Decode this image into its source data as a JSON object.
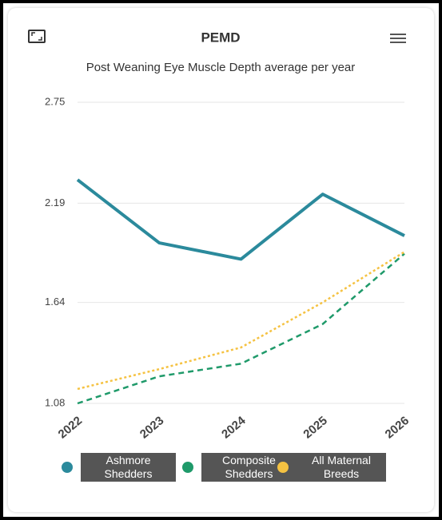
{
  "chart_data": {
    "type": "line",
    "title": "PEMD",
    "subtitle": "Post Weaning Eye Muscle Depth average per year",
    "categories": [
      "2022",
      "2023",
      "2024",
      "2025",
      "2026"
    ],
    "series": [
      {
        "name": "Ashmore Shedders",
        "color": "#2b8a9c",
        "dash": "solid",
        "values": [
          2.32,
          1.97,
          1.88,
          2.24,
          2.01
        ]
      },
      {
        "name": "Composite Shedders",
        "color": "#1f9a6a",
        "dash": "dashed",
        "values": [
          1.08,
          1.23,
          1.3,
          1.52,
          1.91
        ]
      },
      {
        "name": "All Maternal Breeds",
        "color": "#f5c242",
        "dash": "dotted",
        "values": [
          1.16,
          1.27,
          1.39,
          1.64,
          1.92
        ]
      }
    ],
    "ylim": [
      1.08,
      2.75
    ],
    "yticks": [
      2.75,
      2.19,
      1.64,
      1.08
    ],
    "grid": true
  }
}
